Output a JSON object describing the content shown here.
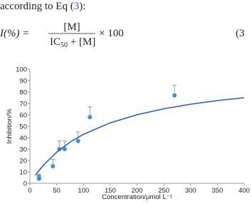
{
  "text": {
    "before": "according to Eq (",
    "link": "3",
    "after": "):"
  },
  "equation": {
    "lhs": "I(%) =",
    "numerator": "[M]",
    "den_main": "IC",
    "den_sub": "50",
    "den_rest": " + [M]",
    "factor": "× 100",
    "number": "(3"
  },
  "chart_data": {
    "type": "scatter",
    "xlabel": "Concentration/μmol L⁻¹",
    "ylabel": "Inhibition/%",
    "xlim": [
      0,
      400
    ],
    "ylim": [
      0,
      100
    ],
    "xticks": [
      0,
      50,
      100,
      150,
      200,
      250,
      300,
      350,
      400
    ],
    "yticks": [
      0,
      10,
      20,
      30,
      40,
      50,
      60,
      70,
      80,
      90,
      100
    ],
    "series": [
      {
        "type": "scatter",
        "color": "#3b8fdc",
        "x": [
          17,
          17,
          43,
          55,
          65,
          90,
          112,
          270
        ],
        "values": [
          6,
          4,
          15,
          30,
          30,
          37,
          58,
          77
        ],
        "errors": [
          2,
          2,
          6,
          7,
          7,
          8,
          9,
          9
        ]
      },
      {
        "type": "line",
        "color": "#2a5ec4",
        "x": [
          10,
          25,
          50,
          75,
          100,
          150,
          200,
          250,
          300,
          350,
          400
        ],
        "values": [
          7.0,
          15.8,
          27.3,
          36.1,
          42.9,
          53.0,
          60.1,
          65.3,
          69.3,
          72.5,
          75.0
        ]
      }
    ]
  }
}
